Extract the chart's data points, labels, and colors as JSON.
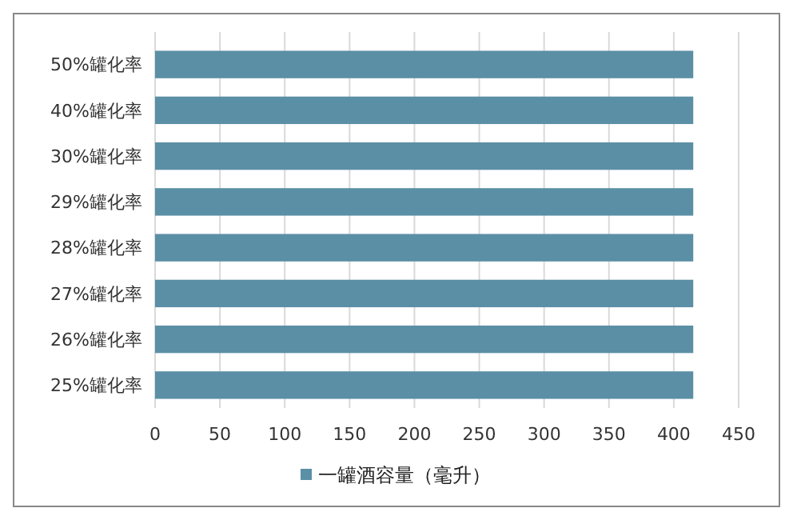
{
  "chart_data": {
    "type": "bar",
    "orientation": "horizontal",
    "categories": [
      "50%罐化率",
      "40%罐化率",
      "30%罐化率",
      "29%罐化率",
      "28%罐化率",
      "27%罐化率",
      "26%罐化率",
      "25%罐化率"
    ],
    "series": [
      {
        "name": "一罐酒容量（毫升）",
        "color": "#5b8fa6",
        "values": [
          415,
          415,
          415,
          415,
          415,
          415,
          415,
          415
        ]
      }
    ],
    "xlim": [
      0,
      450
    ],
    "xticks": [
      0,
      50,
      100,
      150,
      200,
      250,
      300,
      350,
      400,
      450
    ],
    "grid": "x",
    "legend": "bottom"
  }
}
